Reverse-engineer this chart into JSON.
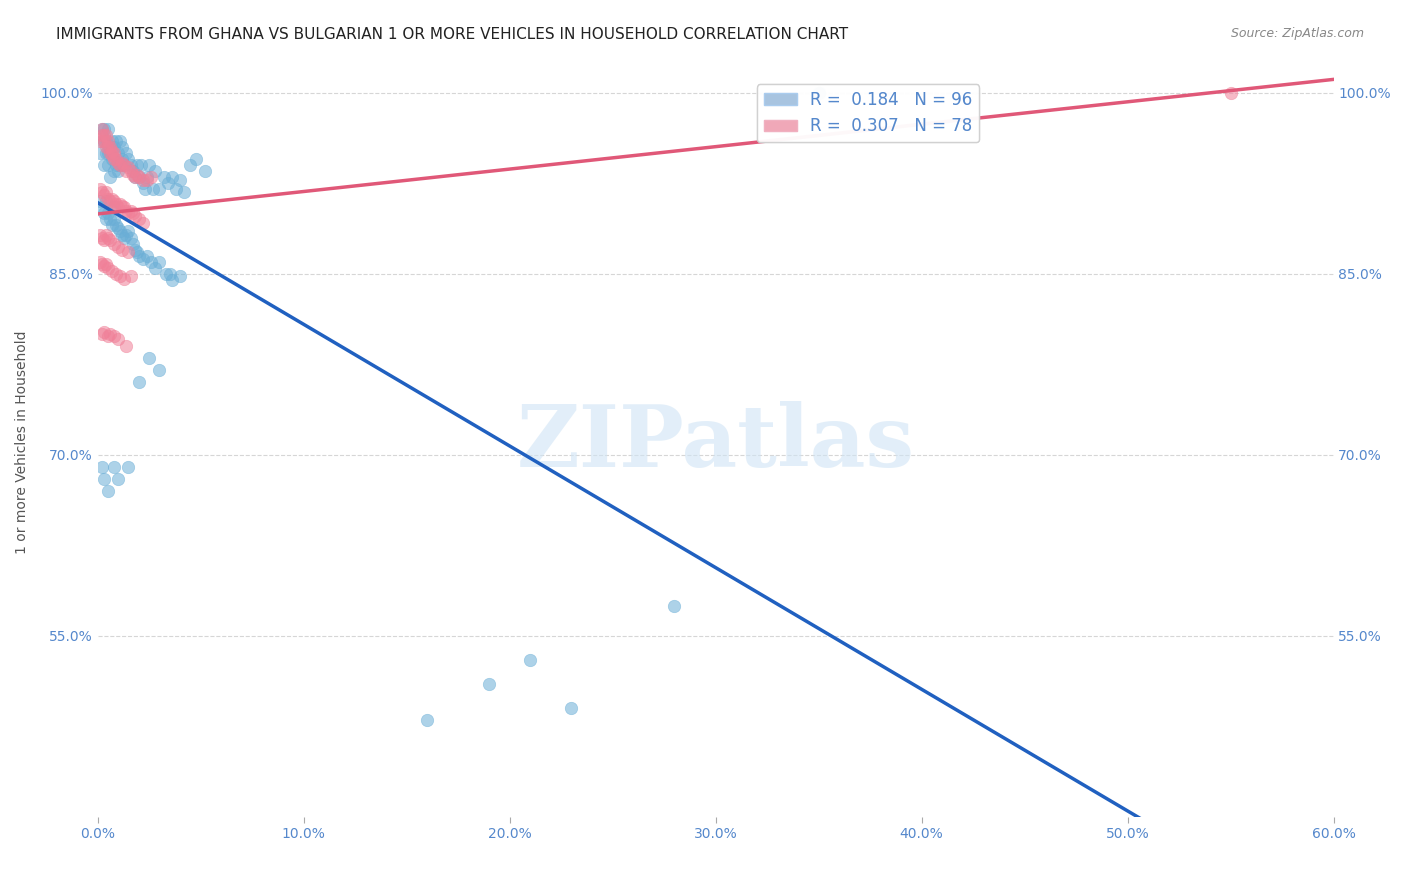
{
  "title": "IMMIGRANTS FROM GHANA VS BULGARIAN 1 OR MORE VEHICLES IN HOUSEHOLD CORRELATION CHART",
  "source": "Source: ZipAtlas.com",
  "xlabel_bottom": "",
  "ylabel": "1 or more Vehicles in Household",
  "xlim": [
    0.0,
    0.6
  ],
  "ylim": [
    0.4,
    1.02
  ],
  "xticks": [
    0.0,
    0.1,
    0.2,
    0.3,
    0.4,
    0.5,
    0.6
  ],
  "xticklabels": [
    "0.0%",
    "10.0%",
    "20.0%",
    "30.0%",
    "40.0%",
    "50.0%",
    "60.0%"
  ],
  "yticks": [
    0.55,
    0.7,
    0.85,
    1.0
  ],
  "yticklabels": [
    "55.0%",
    "70.0%",
    "85.0%",
    "100.0%"
  ],
  "legend_label1": "R =  0.184   N = 96",
  "legend_label2": "R =  0.307   N = 78",
  "legend_color1": "#a8c4e0",
  "legend_color2": "#f0a8b8",
  "scatter_color1": "#6aaed6",
  "scatter_color2": "#f08098",
  "trendline_color1": "#2060c0",
  "trendline_color2": "#e05878",
  "watermark": "ZIPatlas",
  "background_color": "#ffffff",
  "title_fontsize": 11,
  "axis_label_color": "#5588cc",
  "tick_label_color": "#5588cc",
  "ghana_x": [
    0.001,
    0.002,
    0.002,
    0.003,
    0.003,
    0.003,
    0.004,
    0.004,
    0.005,
    0.005,
    0.005,
    0.006,
    0.006,
    0.007,
    0.007,
    0.008,
    0.008,
    0.009,
    0.009,
    0.01,
    0.01,
    0.011,
    0.011,
    0.012,
    0.012,
    0.013,
    0.014,
    0.015,
    0.016,
    0.017,
    0.018,
    0.019,
    0.02,
    0.021,
    0.022,
    0.023,
    0.024,
    0.025,
    0.027,
    0.028,
    0.03,
    0.032,
    0.034,
    0.036,
    0.038,
    0.04,
    0.042,
    0.045,
    0.048,
    0.052,
    0.001,
    0.002,
    0.003,
    0.004,
    0.004,
    0.005,
    0.006,
    0.007,
    0.008,
    0.008,
    0.009,
    0.01,
    0.011,
    0.012,
    0.013,
    0.014,
    0.015,
    0.016,
    0.017,
    0.018,
    0.019,
    0.02,
    0.022,
    0.024,
    0.026,
    0.028,
    0.03,
    0.033,
    0.036,
    0.04,
    0.002,
    0.003,
    0.005,
    0.008,
    0.01,
    0.015,
    0.02,
    0.025,
    0.03,
    0.035,
    0.16,
    0.19,
    0.21,
    0.23,
    0.28,
    0.35
  ],
  "ghana_y": [
    0.95,
    0.96,
    0.97,
    0.94,
    0.96,
    0.97,
    0.95,
    0.96,
    0.94,
    0.95,
    0.97,
    0.93,
    0.95,
    0.945,
    0.96,
    0.935,
    0.955,
    0.94,
    0.96,
    0.935,
    0.95,
    0.94,
    0.96,
    0.945,
    0.955,
    0.94,
    0.95,
    0.945,
    0.94,
    0.935,
    0.93,
    0.94,
    0.93,
    0.94,
    0.925,
    0.92,
    0.93,
    0.94,
    0.92,
    0.935,
    0.92,
    0.93,
    0.925,
    0.93,
    0.92,
    0.928,
    0.918,
    0.94,
    0.945,
    0.935,
    0.91,
    0.905,
    0.9,
    0.895,
    0.91,
    0.9,
    0.895,
    0.89,
    0.895,
    0.905,
    0.89,
    0.888,
    0.885,
    0.882,
    0.88,
    0.882,
    0.885,
    0.88,
    0.875,
    0.87,
    0.868,
    0.865,
    0.862,
    0.865,
    0.86,
    0.855,
    0.86,
    0.85,
    0.845,
    0.848,
    0.69,
    0.68,
    0.67,
    0.69,
    0.68,
    0.69,
    0.76,
    0.78,
    0.77,
    0.85,
    0.48,
    0.51,
    0.53,
    0.49,
    0.575,
    1.0
  ],
  "bulgarian_x": [
    0.001,
    0.002,
    0.002,
    0.003,
    0.003,
    0.004,
    0.004,
    0.005,
    0.005,
    0.006,
    0.006,
    0.007,
    0.007,
    0.008,
    0.008,
    0.009,
    0.01,
    0.011,
    0.012,
    0.013,
    0.014,
    0.015,
    0.016,
    0.017,
    0.018,
    0.019,
    0.02,
    0.022,
    0.024,
    0.026,
    0.001,
    0.002,
    0.003,
    0.004,
    0.005,
    0.006,
    0.007,
    0.008,
    0.009,
    0.01,
    0.011,
    0.012,
    0.013,
    0.014,
    0.015,
    0.016,
    0.017,
    0.018,
    0.02,
    0.022,
    0.001,
    0.002,
    0.003,
    0.004,
    0.005,
    0.006,
    0.008,
    0.01,
    0.012,
    0.015,
    0.001,
    0.002,
    0.003,
    0.004,
    0.005,
    0.007,
    0.009,
    0.011,
    0.013,
    0.016,
    0.002,
    0.003,
    0.005,
    0.006,
    0.008,
    0.01,
    0.014,
    0.55
  ],
  "bulgarian_y": [
    0.96,
    0.965,
    0.97,
    0.96,
    0.965,
    0.955,
    0.965,
    0.955,
    0.96,
    0.95,
    0.955,
    0.948,
    0.952,
    0.945,
    0.95,
    0.945,
    0.942,
    0.94,
    0.942,
    0.94,
    0.935,
    0.938,
    0.935,
    0.932,
    0.93,
    0.932,
    0.93,
    0.928,
    0.928,
    0.93,
    0.92,
    0.918,
    0.915,
    0.918,
    0.912,
    0.91,
    0.912,
    0.91,
    0.908,
    0.905,
    0.908,
    0.906,
    0.905,
    0.902,
    0.9,
    0.902,
    0.9,
    0.898,
    0.895,
    0.892,
    0.882,
    0.88,
    0.878,
    0.882,
    0.88,
    0.878,
    0.875,
    0.872,
    0.87,
    0.868,
    0.86,
    0.858,
    0.856,
    0.858,
    0.855,
    0.852,
    0.85,
    0.848,
    0.846,
    0.848,
    0.8,
    0.802,
    0.798,
    0.8,
    0.798,
    0.796,
    0.79,
    1.0
  ]
}
